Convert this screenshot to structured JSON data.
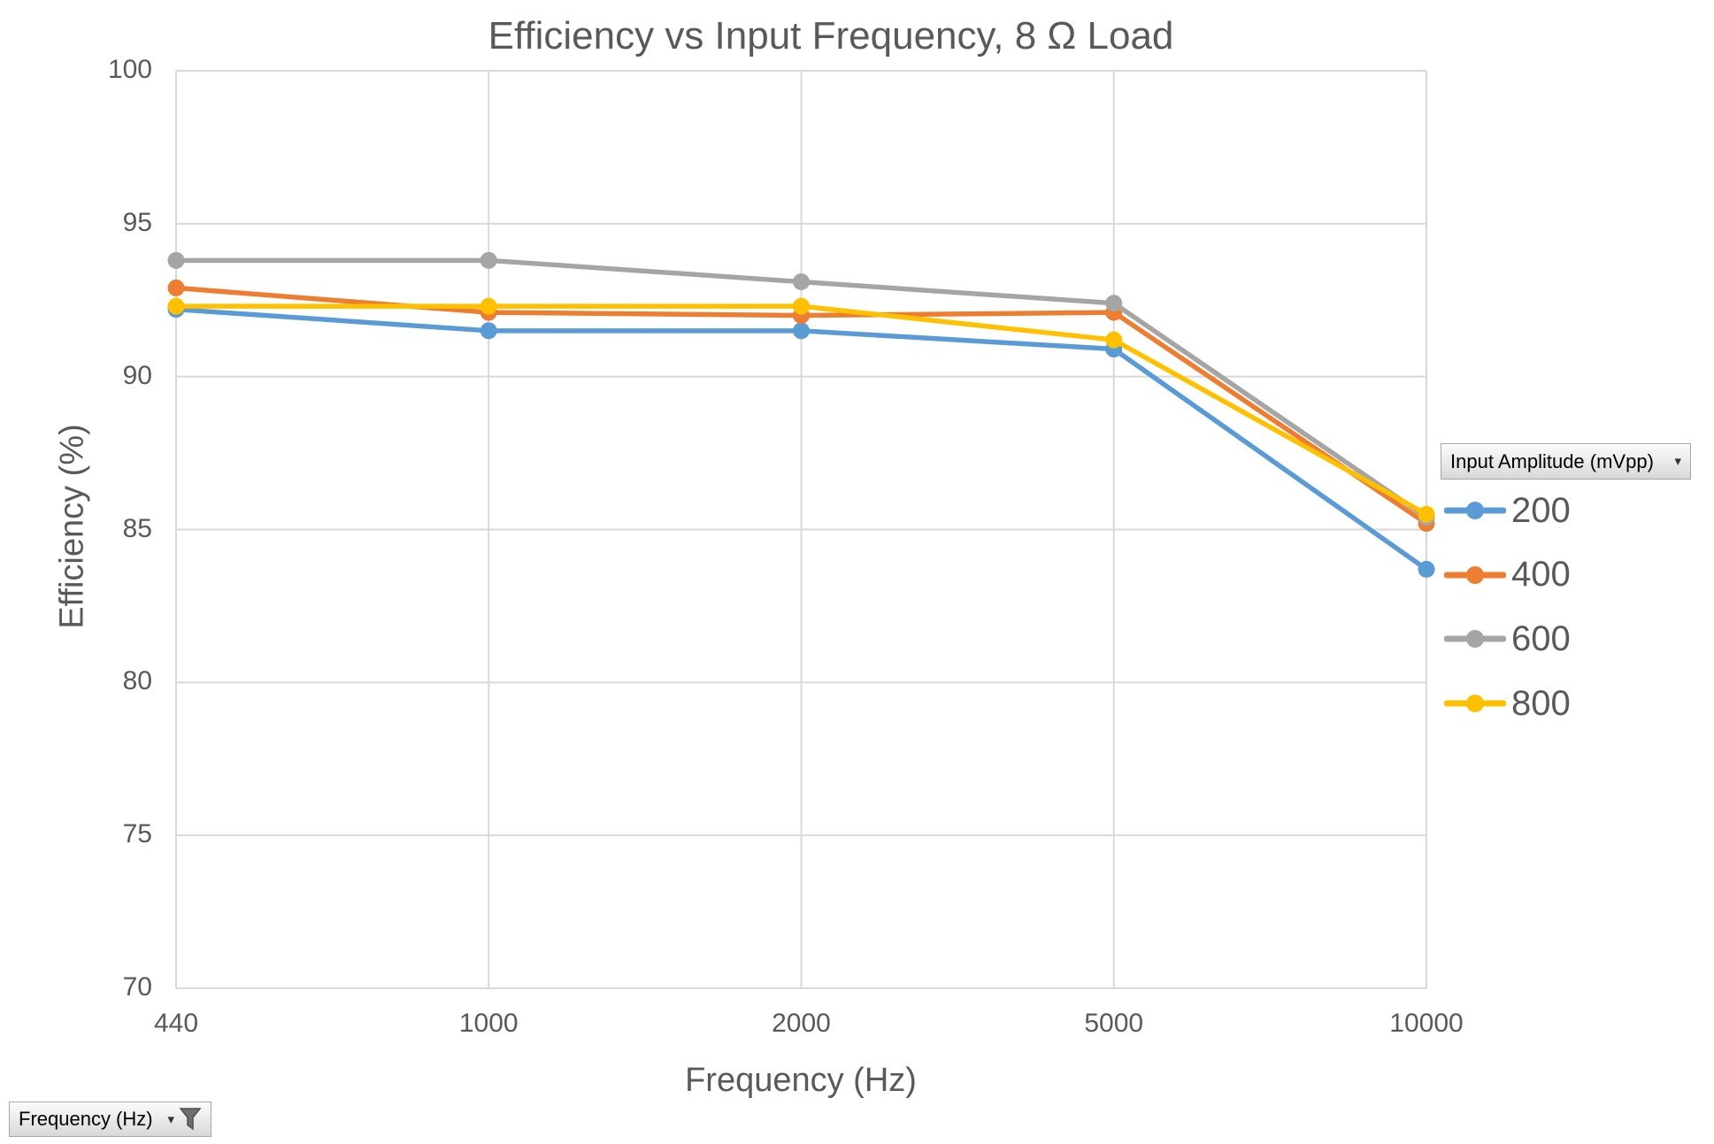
{
  "chart_data": {
    "type": "line",
    "title": "Efficiency vs Input Frequency, 8 Ω Load",
    "xlabel": "Frequency (Hz)",
    "ylabel": "Efficiency (%)",
    "categories": [
      "440",
      "1000",
      "2000",
      "5000",
      "10000"
    ],
    "y_ticks": [
      70,
      75,
      80,
      85,
      90,
      95,
      100
    ],
    "ylim": [
      70,
      100
    ],
    "grid": true,
    "legend_position": "right",
    "gridline_color": "#d9d9d9",
    "axis_text_color": "#595959",
    "series": [
      {
        "name": "200",
        "color": "#5B9BD5",
        "values": [
          92.2,
          91.5,
          91.5,
          90.9,
          83.7
        ]
      },
      {
        "name": "400",
        "color": "#ED7D31",
        "values": [
          92.9,
          92.1,
          92.0,
          92.1,
          85.2
        ]
      },
      {
        "name": "600",
        "color": "#A5A5A5",
        "values": [
          93.8,
          93.8,
          93.1,
          92.4,
          85.4
        ]
      },
      {
        "name": "800",
        "color": "#FFC000",
        "values": [
          92.3,
          92.3,
          92.3,
          91.2,
          85.5
        ]
      }
    ]
  },
  "legend": {
    "field_button_label": "Input Amplitude (mVpp)",
    "dropdown_icon": "▾"
  },
  "filter_button": {
    "label": "Frequency (Hz)",
    "dropdown_icon": "▾"
  }
}
